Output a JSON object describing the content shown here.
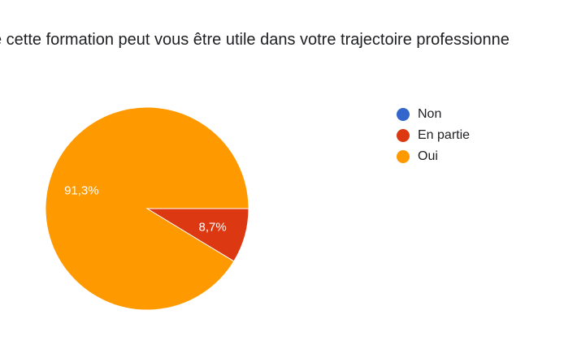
{
  "chart_data": {
    "type": "pie",
    "title": "e cette formation peut vous être utile dans votre trajectoire professionne",
    "categories": [
      "Non",
      "En partie",
      "Oui"
    ],
    "values": [
      0,
      8.7,
      91.3
    ],
    "labels": [
      "",
      "8,7%",
      "91,3%"
    ],
    "colors": [
      "#3366cc",
      "#dc3912",
      "#ff9900"
    ],
    "legend_position": "right"
  }
}
